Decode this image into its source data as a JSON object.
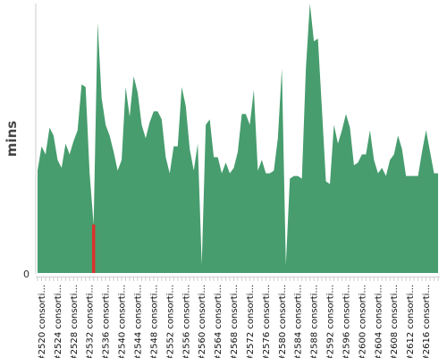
{
  "chart_data": {
    "type": "area",
    "ylabel": "mins",
    "ylim": [
      0,
      100
    ],
    "y_ticks": [
      "0"
    ],
    "x_tick_labels": [
      "#2520 consorti...",
      "#2524 consorti...",
      "#2528 consorti...",
      "#2532 consorti...",
      "#2536 consorti...",
      "#2540 consorti...",
      "#2544 consorti...",
      "#2548 consorti...",
      "#2552 consorti...",
      "#2556 consorti...",
      "#2560 consorti...",
      "#2564 consorti...",
      "#2568 consorti...",
      "#2572 consorti...",
      "#2576 consorti...",
      "#2580 consorti...",
      "#2584 consorti...",
      "#2588 consorti...",
      "#2592 consorti...",
      "#2596 consorti...",
      "#2600 consorti...",
      "#2604 consorti...",
      "#2608 consorti...",
      "#2612 consorti...",
      "#2616 consorti..."
    ],
    "x_start": 2519,
    "x_end": 2619,
    "series": [
      {
        "values": [
          38,
          47,
          44,
          54,
          51,
          42,
          39,
          48,
          44,
          49,
          53,
          70,
          69,
          37,
          18,
          93,
          65,
          55,
          51,
          45,
          38,
          42,
          69,
          58,
          73,
          67,
          55,
          50,
          56,
          60,
          60,
          57,
          43,
          37,
          47,
          47,
          69,
          62,
          46,
          38,
          48,
          3,
          55,
          57,
          43,
          43,
          37,
          41,
          37,
          39,
          45,
          59,
          59,
          55,
          68,
          38,
          42,
          37,
          37,
          38,
          50,
          76,
          3,
          35,
          36,
          36,
          35,
          76,
          100,
          86,
          87,
          61,
          34,
          33,
          55,
          48,
          53,
          59,
          54,
          40,
          41,
          44,
          44,
          53,
          42,
          37,
          39,
          36,
          42,
          44,
          51,
          46,
          36,
          36,
          36,
          36,
          45,
          53,
          45,
          37,
          37
        ],
        "color": "#479d6e"
      }
    ],
    "highlight": {
      "build": 2533,
      "color": "#d9342b"
    },
    "grid": false,
    "background": "#ffffff"
  }
}
